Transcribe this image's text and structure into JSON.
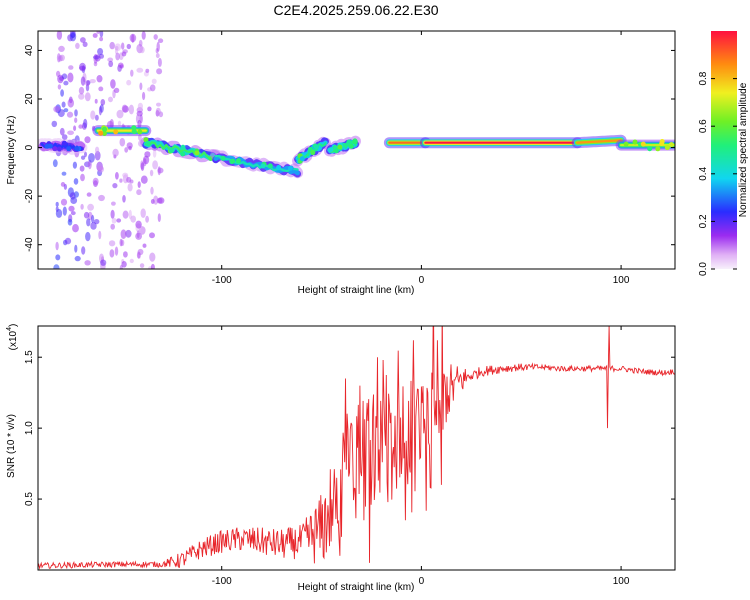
{
  "title": "C2E4.2025.259.06.22.E30",
  "chart_data": [
    {
      "type": "heatmap",
      "title": "C2E4.2025.259.06.22.E30",
      "xlabel": "Height of straight line (km)",
      "ylabel": "Frequency (Hz)",
      "xlim": [
        -192,
        127
      ],
      "ylim": [
        -50,
        48
      ],
      "xticks": [
        -100,
        0,
        100
      ],
      "yticks": [
        -40,
        -20,
        0,
        20,
        40
      ],
      "colorbar": {
        "label": "Normalized spectral amplitude",
        "range": [
          0.0,
          1.0
        ],
        "ticks": [
          0.0,
          0.2,
          0.4,
          0.6,
          0.8
        ]
      },
      "tracks": [
        {
          "x0": -190,
          "x1": -170,
          "f0": 1,
          "f1": 0,
          "amp": 0.25
        },
        {
          "x0": -162,
          "x1": -138,
          "f0": 7,
          "f1": 7,
          "amp": 0.75
        },
        {
          "x0": -138,
          "x1": -103,
          "f0": 2,
          "f1": -4,
          "amp": 0.55
        },
        {
          "x0": -103,
          "x1": -62,
          "f0": -4,
          "f1": -10,
          "amp": 0.45
        },
        {
          "x0": -62,
          "x1": -48,
          "f0": -5,
          "f1": 2,
          "amp": 0.5
        },
        {
          "x0": -46,
          "x1": -33,
          "f0": -1,
          "f1": 2,
          "amp": 0.5
        },
        {
          "x0": -16,
          "x1": 2,
          "f0": 2,
          "f1": 2,
          "amp": 0.9
        },
        {
          "x0": 2,
          "x1": 78,
          "f0": 2,
          "f1": 2,
          "amp": 1.0
        },
        {
          "x0": 78,
          "x1": 100,
          "f0": 2,
          "f1": 3,
          "amp": 0.85
        },
        {
          "x0": 100,
          "x1": 127,
          "f0": 1,
          "f1": 1,
          "amp": 0.7
        }
      ],
      "noise_columns": [
        {
          "x": -178,
          "amp": 0.22
        },
        {
          "x": -165,
          "amp": 0.18
        },
        {
          "x": -150,
          "amp": 0.14
        },
        {
          "x": -136,
          "amp": 0.12
        }
      ]
    },
    {
      "type": "line",
      "xlabel": "Height of straight line (km)",
      "ylabel": "SNR (10 * v/v)",
      "yscale_label": "(x10",
      "yscale_exponent": "4",
      "xlim": [
        -192,
        127
      ],
      "ylim": [
        0,
        1.72
      ],
      "xticks": [
        -100,
        0,
        100
      ],
      "yticks": [
        0.5,
        1.0,
        1.5
      ],
      "ytick_labels": [
        "0.5",
        "1.0",
        "1.5"
      ],
      "series": [
        {
          "name": "SNR",
          "color": "#e8262b",
          "envelope_x": [
            -192,
            -150,
            -130,
            -120,
            -110,
            -100,
            -90,
            -80,
            -70,
            -60,
            -50,
            -45,
            -40,
            -35,
            -30,
            -25,
            -20,
            -15,
            -10,
            -5,
            0,
            5,
            10,
            15,
            20,
            30,
            40,
            50,
            60,
            70,
            80,
            90,
            100,
            110,
            120,
            127
          ],
          "envelope_y": [
            0.03,
            0.04,
            0.04,
            0.07,
            0.15,
            0.2,
            0.22,
            0.2,
            0.18,
            0.2,
            0.28,
            0.45,
            0.6,
            0.7,
            0.75,
            0.82,
            0.85,
            0.88,
            0.9,
            0.95,
            1.02,
            1.12,
            1.2,
            1.28,
            1.34,
            1.4,
            1.42,
            1.43,
            1.43,
            1.42,
            1.42,
            1.42,
            1.42,
            1.4,
            1.39,
            1.4
          ],
          "jitter_x": [
            -192,
            -130,
            -120,
            -60,
            -48,
            -40,
            -20,
            -10,
            10,
            25,
            60,
            127
          ],
          "jitter_y": [
            0.02,
            0.02,
            0.06,
            0.12,
            0.3,
            0.45,
            0.45,
            0.35,
            0.25,
            0.04,
            0.02,
            0.02
          ],
          "spikes": [
            {
              "x": -41,
              "y": 0.1
            },
            {
              "x": -38,
              "y": 1.35
            },
            {
              "x": -31,
              "y": 1.3
            },
            {
              "x": -26,
              "y": 0.05
            },
            {
              "x": -22,
              "y": 1.5
            },
            {
              "x": -8,
              "y": 0.35
            },
            {
              "x": 8,
              "y": 1.62
            },
            {
              "x": 10,
              "y": 0.6
            },
            {
              "x": 93,
              "y": 1.0
            },
            {
              "x": 94,
              "y": 1.72
            }
          ]
        }
      ]
    }
  ]
}
